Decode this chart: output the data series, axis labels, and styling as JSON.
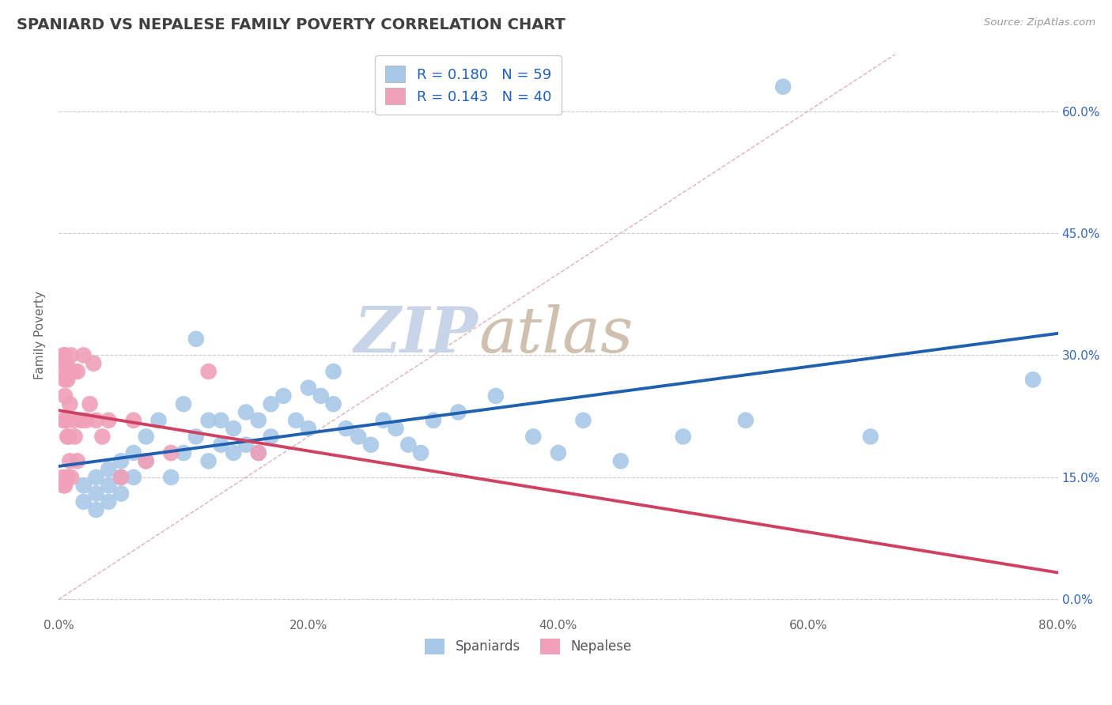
{
  "title": "SPANIARD VS NEPALESE FAMILY POVERTY CORRELATION CHART",
  "source_text": "Source: ZipAtlas.com",
  "ylabel": "Family Poverty",
  "xlim": [
    0.0,
    0.8
  ],
  "ylim": [
    -0.02,
    0.67
  ],
  "xticks": [
    0.0,
    0.2,
    0.4,
    0.6,
    0.8
  ],
  "yticks_right": [
    0.0,
    0.15,
    0.3,
    0.45,
    0.6
  ],
  "ytick_labels_right": [
    "0.0%",
    "15.0%",
    "30.0%",
    "45.0%",
    "60.0%"
  ],
  "spaniards_R": "0.180",
  "spaniards_N": "59",
  "nepalese_R": "0.143",
  "nepalese_N": "40",
  "blue_color": "#A8C8E8",
  "pink_color": "#F0A0B8",
  "blue_line_color": "#2060B0",
  "pink_line_color": "#D04060",
  "diag_line_color": "#E0A0A8",
  "legend_r_n_color": "#2060C0",
  "title_color": "#404040",
  "watermark_zip_color": "#C8D4E8",
  "watermark_atlas_color": "#D0C0B0",
  "background_color": "#FFFFFF",
  "grid_color": "#CCCCCC",
  "spaniards_x": [
    0.02,
    0.02,
    0.03,
    0.03,
    0.03,
    0.04,
    0.04,
    0.04,
    0.05,
    0.05,
    0.05,
    0.06,
    0.06,
    0.07,
    0.07,
    0.08,
    0.09,
    0.1,
    0.1,
    0.11,
    0.11,
    0.12,
    0.12,
    0.13,
    0.13,
    0.14,
    0.14,
    0.15,
    0.15,
    0.16,
    0.16,
    0.17,
    0.17,
    0.18,
    0.19,
    0.2,
    0.2,
    0.21,
    0.22,
    0.22,
    0.23,
    0.24,
    0.25,
    0.26,
    0.27,
    0.28,
    0.29,
    0.3,
    0.32,
    0.35,
    0.38,
    0.4,
    0.42,
    0.45,
    0.5,
    0.55,
    0.58,
    0.65,
    0.78
  ],
  "spaniards_y": [
    0.14,
    0.12,
    0.15,
    0.13,
    0.11,
    0.16,
    0.14,
    0.12,
    0.17,
    0.15,
    0.13,
    0.18,
    0.15,
    0.2,
    0.17,
    0.22,
    0.15,
    0.24,
    0.18,
    0.32,
    0.2,
    0.17,
    0.22,
    0.19,
    0.22,
    0.21,
    0.18,
    0.23,
    0.19,
    0.22,
    0.18,
    0.24,
    0.2,
    0.25,
    0.22,
    0.21,
    0.26,
    0.25,
    0.24,
    0.28,
    0.21,
    0.2,
    0.19,
    0.22,
    0.21,
    0.19,
    0.18,
    0.22,
    0.23,
    0.25,
    0.2,
    0.18,
    0.22,
    0.17,
    0.2,
    0.22,
    0.63,
    0.2,
    0.27
  ],
  "nepalese_x": [
    0.003,
    0.003,
    0.003,
    0.004,
    0.004,
    0.004,
    0.005,
    0.005,
    0.005,
    0.005,
    0.006,
    0.006,
    0.007,
    0.007,
    0.007,
    0.008,
    0.008,
    0.009,
    0.009,
    0.01,
    0.01,
    0.012,
    0.012,
    0.013,
    0.015,
    0.015,
    0.018,
    0.02,
    0.022,
    0.025,
    0.028,
    0.03,
    0.035,
    0.04,
    0.05,
    0.06,
    0.07,
    0.09,
    0.12,
    0.16
  ],
  "nepalese_y": [
    0.29,
    0.28,
    0.15,
    0.3,
    0.22,
    0.14,
    0.3,
    0.27,
    0.25,
    0.14,
    0.29,
    0.22,
    0.27,
    0.2,
    0.15,
    0.28,
    0.2,
    0.24,
    0.17,
    0.3,
    0.15,
    0.28,
    0.22,
    0.2,
    0.28,
    0.17,
    0.22,
    0.3,
    0.22,
    0.24,
    0.29,
    0.22,
    0.2,
    0.22,
    0.15,
    0.22,
    0.17,
    0.18,
    0.28,
    0.18
  ]
}
